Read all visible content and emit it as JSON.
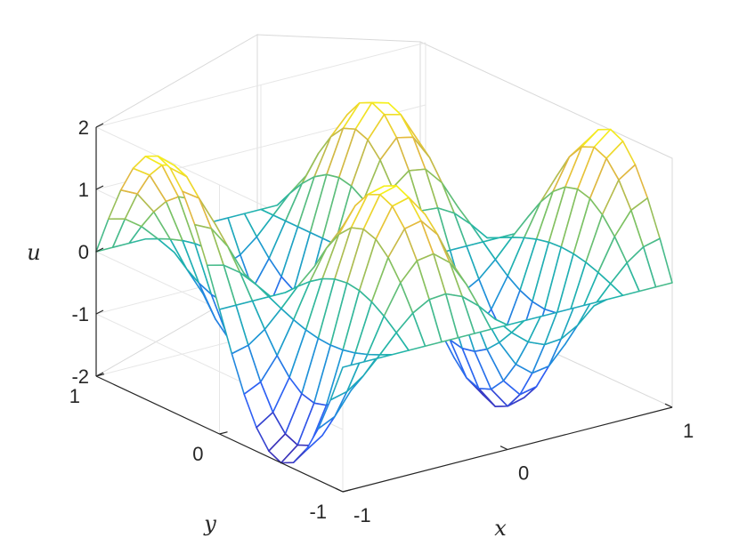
{
  "chart_data": {
    "type": "mesh",
    "title": "",
    "xlabel": "x",
    "ylabel": "y",
    "zlabel": "u",
    "xlim": [
      -1,
      1
    ],
    "ylim": [
      -1,
      1
    ],
    "zlim": [
      -2,
      2
    ],
    "x_ticks": [
      "-1",
      "0",
      "1"
    ],
    "y_ticks": [
      "-1",
      "0",
      "1"
    ],
    "z_ticks": [
      "-2",
      "-1",
      "0",
      "1",
      "2"
    ],
    "grid": true,
    "colormap": "parula",
    "colormap_stops": [
      "#3e26a8",
      "#2f5ff5",
      "#1e96d6",
      "#20b5aa",
      "#7cc264",
      "#e3b840",
      "#f9fb15"
    ],
    "grid_points": 21,
    "surface": {
      "formula": "u(x,y) = 2·sin(1.5πx)·sin(πy)",
      "amplitude": 2,
      "x_frequency_pi": 1.5,
      "y_frequency_pi": 1.0
    },
    "background": "#ffffff",
    "axis_color": "#262626",
    "grid_color": "#e6e6e6"
  }
}
